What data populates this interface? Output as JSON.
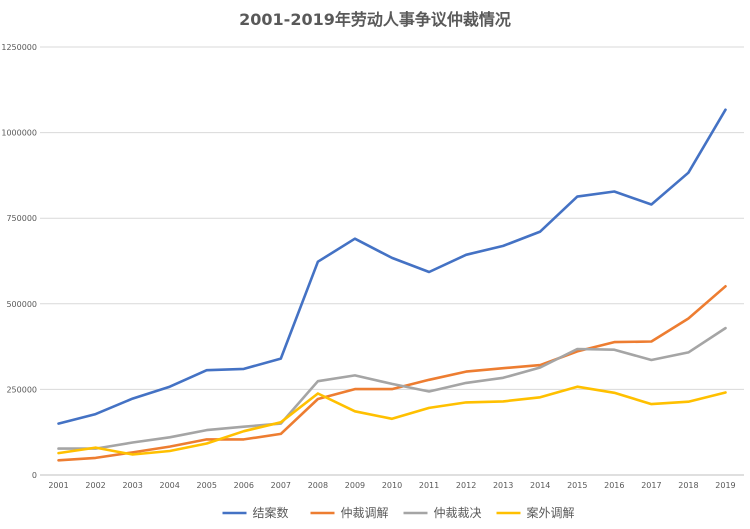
{
  "chart_data": {
    "type": "line",
    "title": "2001-2019年劳动人事争议仲裁情况",
    "x": [
      "2001",
      "2002",
      "2003",
      "2004",
      "2005",
      "2006",
      "2007",
      "2008",
      "2009",
      "2010",
      "2011",
      "2012",
      "2013",
      "2014",
      "2015",
      "2016",
      "2017",
      "2018",
      "2019"
    ],
    "ylim": [
      0,
      1250000
    ],
    "yticks": [
      0,
      250000,
      500000,
      750000,
      1000000,
      1250000
    ],
    "ytick_labels": [
      "0",
      "250000",
      "500000",
      "750000",
      "1000000",
      "1250000"
    ],
    "grid": true,
    "legend_position": "bottom",
    "series": [
      {
        "name": "结案数",
        "color": "#4472C4",
        "values": [
          150000,
          178000,
          223000,
          258000,
          306000,
          310000,
          340000,
          623000,
          690000,
          634000,
          593000,
          643000,
          669000,
          711000,
          813000,
          828000,
          790000,
          883000,
          1067000
        ]
      },
      {
        "name": "仲裁调解",
        "color": "#ED7D31",
        "values": [
          43000,
          50000,
          66000,
          83000,
          104000,
          104000,
          120000,
          222000,
          251000,
          251000,
          278000,
          302000,
          312000,
          321000,
          361000,
          388000,
          390000,
          457000,
          551000
        ]
      },
      {
        "name": "仲裁裁决",
        "color": "#A5A5A5",
        "values": [
          77000,
          77000,
          95000,
          110000,
          131000,
          141000,
          150000,
          274000,
          291000,
          266000,
          244000,
          269000,
          284000,
          314000,
          368000,
          366000,
          336000,
          358000,
          429000
        ]
      },
      {
        "name": "案外调解",
        "color": "#FFC000",
        "values": [
          64000,
          80000,
          60000,
          70000,
          92000,
          128000,
          154000,
          238000,
          186000,
          164000,
          196000,
          212000,
          215000,
          227000,
          258000,
          240000,
          207000,
          214000,
          241000
        ]
      }
    ]
  }
}
